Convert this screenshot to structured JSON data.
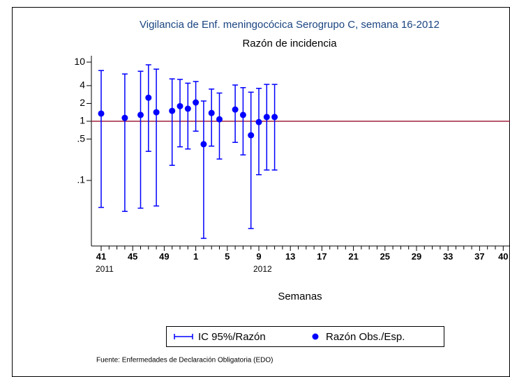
{
  "chart_data": {
    "type": "errorbar",
    "title": "Vigilancia de Enf. meningocócica Serogrupo C, semana 16-2012",
    "subtitle": "Razón de incidencia",
    "xlabel": "Semanas",
    "source": "Fuente: Enfermedades de Declaración Obligatoria (EDO)",
    "categories": [
      "41",
      null,
      null,
      null,
      "45",
      null,
      null,
      null,
      "49",
      null,
      null,
      null,
      "1",
      null,
      null,
      null,
      "5",
      null,
      null,
      null,
      "9",
      null,
      null,
      null,
      "13",
      null,
      null,
      null,
      "17",
      null,
      null,
      null,
      "21",
      null,
      null,
      null,
      "25",
      null,
      null,
      null,
      "29",
      null,
      null,
      null,
      "33",
      null,
      null,
      null,
      "37",
      null,
      null,
      "40"
    ],
    "annotations": [
      {
        "text": "2011",
        "x": "41"
      },
      {
        "text": "2012",
        "x": "9"
      }
    ],
    "series": [
      {
        "name": "Razón Obs./Esp.",
        "color": "#0000ff",
        "values": [
          1.35,
          null,
          null,
          1.14,
          null,
          1.28,
          2.5,
          1.42,
          null,
          1.5,
          1.8,
          1.63,
          2.08,
          0.41,
          1.38,
          1.08,
          null,
          1.58,
          1.28,
          0.58,
          0.97,
          1.18,
          1.18,
          null,
          null,
          null,
          null,
          null,
          null,
          null,
          null,
          null,
          null,
          null,
          null,
          null,
          null,
          null,
          null,
          null,
          null,
          null,
          null,
          null,
          null,
          null,
          null,
          null,
          null,
          null,
          null,
          null
        ]
      },
      {
        "name": "IC 95%/Razón",
        "color": "#0000ff",
        "lower": [
          0.035,
          null,
          null,
          0.03,
          null,
          0.034,
          0.31,
          0.037,
          null,
          0.18,
          0.37,
          0.34,
          0.68,
          0.0105,
          0.38,
          0.23,
          null,
          0.44,
          0.27,
          0.0154,
          0.125,
          0.15,
          0.15,
          null,
          null,
          null,
          null,
          null,
          null,
          null,
          null,
          null,
          null,
          null,
          null,
          null,
          null,
          null,
          null,
          null,
          null,
          null,
          null,
          null,
          null,
          null,
          null,
          null,
          null,
          null,
          null,
          null
        ],
        "upper": [
          7.2,
          null,
          null,
          6.3,
          null,
          7.0,
          9.0,
          7.6,
          null,
          5.2,
          5.1,
          4.4,
          4.7,
          2.2,
          3.5,
          3.0,
          null,
          4.1,
          3.7,
          3.1,
          3.6,
          4.2,
          4.2,
          null,
          null,
          null,
          null,
          null,
          null,
          null,
          null,
          null,
          null,
          null,
          null,
          null,
          null,
          null,
          null,
          null,
          null,
          null,
          null,
          null,
          null,
          null,
          null,
          null,
          null,
          null,
          null,
          null
        ]
      }
    ],
    "refline": {
      "value": 1,
      "color": "#a0203c"
    },
    "ylim": [
      0.0078,
      12.8
    ],
    "yscale": "log",
    "yticks": [
      10,
      4,
      2,
      1,
      {
        "value": 0.5,
        "label": ".5"
      },
      {
        "value": 0.1,
        "label": ".1"
      }
    ]
  }
}
